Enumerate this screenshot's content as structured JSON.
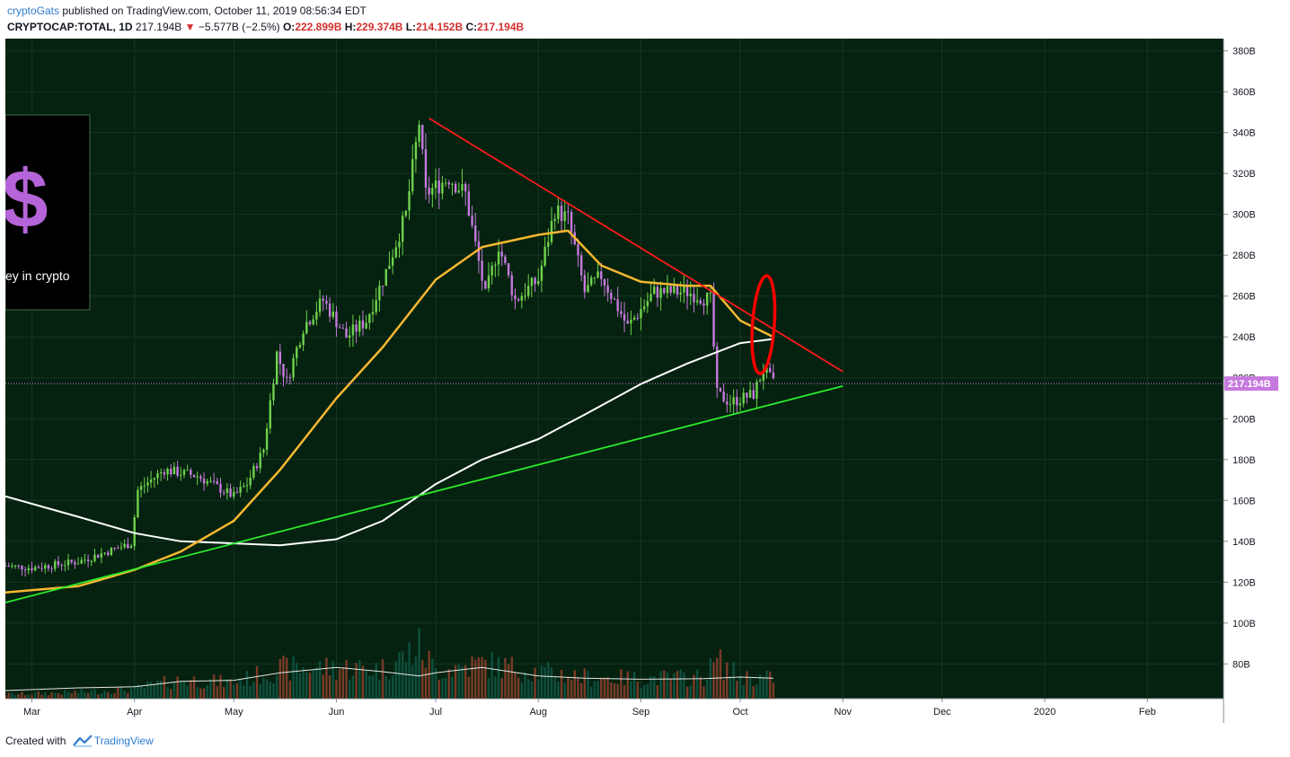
{
  "header": {
    "publisher": "cryptoGats",
    "published_text": "published on TradingView.com, October 11, 2019 08:56:34 EDT",
    "symbol": "CRYPTOCAP:TOTAL, 1D",
    "last": "217.194B",
    "change": "−5.577B (−2.5%)",
    "open_label": "O:",
    "open": "222.899B",
    "high_label": "H:",
    "high": "229.374B",
    "low_label": "L:",
    "low": "214.152B",
    "close_label": "C:",
    "close": "217.194B"
  },
  "overlay": {
    "glyph": "$",
    "text": "ey in crypto"
  },
  "footer": {
    "created": "Created with",
    "brand": "TradingView"
  },
  "colors": {
    "background": "#04220f",
    "grid": "#163522",
    "up": "#6fd24d",
    "down": "#c679dd",
    "ma50": "#f7b731",
    "ma200": "#ffffff",
    "resistance": "#ff1a1a",
    "support": "#2cea2c",
    "volume_up": "#0f4f3e",
    "volume_down": "#7a3b28",
    "annotation": "#ff0000"
  },
  "chart_data": {
    "type": "candlestick",
    "symbol": "CRYPTOCAP:TOTAL",
    "interval": "1D",
    "y_unit": "B",
    "ylim": [
      63,
      386
    ],
    "yticks": [
      80,
      100,
      120,
      140,
      160,
      180,
      200,
      220,
      240,
      260,
      280,
      300,
      320,
      340,
      360,
      380
    ],
    "ytick_labels": [
      "80B",
      "100B",
      "120B",
      "140B",
      "160B",
      "180B",
      "200B",
      "220B",
      "240B",
      "260B",
      "280B",
      "300B",
      "320B",
      "340B",
      "360B",
      "380B"
    ],
    "xlim": [
      "2019-02-21",
      "2020-02-24"
    ],
    "xticks": [
      {
        "date": "2019-03-01",
        "label": "Mar"
      },
      {
        "date": "2019-04-01",
        "label": "Apr"
      },
      {
        "date": "2019-05-01",
        "label": "May"
      },
      {
        "date": "2019-06-01",
        "label": "Jun"
      },
      {
        "date": "2019-07-01",
        "label": "Jul"
      },
      {
        "date": "2019-08-01",
        "label": "Aug"
      },
      {
        "date": "2019-09-01",
        "label": "Sep"
      },
      {
        "date": "2019-10-01",
        "label": "Oct"
      },
      {
        "date": "2019-11-01",
        "label": "Nov"
      },
      {
        "date": "2019-12-01",
        "label": "Dec"
      },
      {
        "date": "2020-01-01",
        "label": "2020"
      },
      {
        "date": "2020-02-01",
        "label": "Feb"
      }
    ],
    "last_price": 217.194,
    "last_price_label": "217.194B",
    "close_path": [
      [
        "2019-02-21",
        128
      ],
      [
        "2019-03-01",
        127
      ],
      [
        "2019-03-15",
        130
      ],
      [
        "2019-03-31",
        139
      ],
      [
        "2019-04-02",
        165
      ],
      [
        "2019-04-10",
        175
      ],
      [
        "2019-04-20",
        172
      ],
      [
        "2019-05-01",
        162
      ],
      [
        "2019-05-05",
        168
      ],
      [
        "2019-05-10",
        185
      ],
      [
        "2019-05-14",
        232
      ],
      [
        "2019-05-17",
        218
      ],
      [
        "2019-05-22",
        245
      ],
      [
        "2019-05-28",
        258
      ],
      [
        "2019-06-04",
        240
      ],
      [
        "2019-06-10",
        248
      ],
      [
        "2019-06-16",
        272
      ],
      [
        "2019-06-22",
        300
      ],
      [
        "2019-06-26",
        345
      ],
      [
        "2019-06-28",
        310
      ],
      [
        "2019-07-05",
        318
      ],
      [
        "2019-07-10",
        310
      ],
      [
        "2019-07-16",
        260
      ],
      [
        "2019-07-20",
        285
      ],
      [
        "2019-07-25",
        258
      ],
      [
        "2019-08-01",
        268
      ],
      [
        "2019-08-06",
        302
      ],
      [
        "2019-08-10",
        298
      ],
      [
        "2019-08-15",
        262
      ],
      [
        "2019-08-20",
        270
      ],
      [
        "2019-08-28",
        245
      ],
      [
        "2019-09-05",
        262
      ],
      [
        "2019-09-15",
        262
      ],
      [
        "2019-09-22",
        258
      ],
      [
        "2019-09-24",
        212
      ],
      [
        "2019-09-28",
        208
      ],
      [
        "2019-10-05",
        212
      ],
      [
        "2019-10-08",
        224
      ],
      [
        "2019-10-11",
        217.194
      ]
    ],
    "ma50_path": [
      [
        "2019-02-21",
        115
      ],
      [
        "2019-03-15",
        118
      ],
      [
        "2019-04-01",
        126
      ],
      [
        "2019-04-15",
        135
      ],
      [
        "2019-05-01",
        150
      ],
      [
        "2019-05-15",
        175
      ],
      [
        "2019-06-01",
        210
      ],
      [
        "2019-06-15",
        235
      ],
      [
        "2019-07-01",
        268
      ],
      [
        "2019-07-15",
        284
      ],
      [
        "2019-08-01",
        290
      ],
      [
        "2019-08-10",
        292
      ],
      [
        "2019-08-20",
        275
      ],
      [
        "2019-09-01",
        267
      ],
      [
        "2019-09-15",
        265
      ],
      [
        "2019-09-22",
        265
      ],
      [
        "2019-10-01",
        248
      ],
      [
        "2019-10-11",
        240
      ]
    ],
    "ma200_path": [
      [
        "2019-02-21",
        162
      ],
      [
        "2019-03-15",
        152
      ],
      [
        "2019-04-01",
        144
      ],
      [
        "2019-04-15",
        140
      ],
      [
        "2019-05-01",
        139
      ],
      [
        "2019-05-15",
        138
      ],
      [
        "2019-06-01",
        141
      ],
      [
        "2019-06-15",
        150
      ],
      [
        "2019-07-01",
        168
      ],
      [
        "2019-07-15",
        180
      ],
      [
        "2019-08-01",
        190
      ],
      [
        "2019-08-15",
        202
      ],
      [
        "2019-09-01",
        217
      ],
      [
        "2019-09-15",
        227
      ],
      [
        "2019-10-01",
        237
      ],
      [
        "2019-10-11",
        239
      ]
    ],
    "trendlines": [
      {
        "name": "resistance",
        "from": [
          "2019-06-29",
          347
        ],
        "to": [
          "2019-11-01",
          223
        ]
      },
      {
        "name": "support",
        "from": [
          "2019-02-21",
          110
        ],
        "to": [
          "2019-11-01",
          216
        ]
      }
    ],
    "volume": {
      "scale_max": 200,
      "path": [
        [
          "2019-02-21",
          8
        ],
        [
          "2019-03-15",
          12
        ],
        [
          "2019-04-01",
          18
        ],
        [
          "2019-04-15",
          35
        ],
        [
          "2019-05-01",
          30
        ],
        [
          "2019-05-15",
          55
        ],
        [
          "2019-06-01",
          58
        ],
        [
          "2019-06-15",
          55
        ],
        [
          "2019-06-26",
          95
        ],
        [
          "2019-07-01",
          52
        ],
        [
          "2019-07-15",
          65
        ],
        [
          "2019-08-01",
          50
        ],
        [
          "2019-08-15",
          40
        ],
        [
          "2019-09-01",
          37
        ],
        [
          "2019-09-20",
          40
        ],
        [
          "2019-09-24",
          70
        ],
        [
          "2019-10-01",
          40
        ],
        [
          "2019-10-11",
          38
        ]
      ],
      "ma_path": [
        [
          "2019-02-21",
          15
        ],
        [
          "2019-03-15",
          20
        ],
        [
          "2019-04-01",
          22
        ],
        [
          "2019-04-15",
          32
        ],
        [
          "2019-05-01",
          34
        ],
        [
          "2019-05-15",
          48
        ],
        [
          "2019-06-01",
          58
        ],
        [
          "2019-06-15",
          50
        ],
        [
          "2019-06-26",
          42
        ],
        [
          "2019-07-01",
          48
        ],
        [
          "2019-07-15",
          58
        ],
        [
          "2019-08-01",
          42
        ],
        [
          "2019-08-15",
          38
        ],
        [
          "2019-09-01",
          36
        ],
        [
          "2019-09-20",
          37
        ],
        [
          "2019-10-01",
          40
        ],
        [
          "2019-10-11",
          38
        ]
      ]
    },
    "annotations": [
      {
        "type": "circle",
        "center": [
          "2019-10-08",
          246
        ],
        "rx_days": 3.3,
        "ry": 24
      }
    ]
  }
}
